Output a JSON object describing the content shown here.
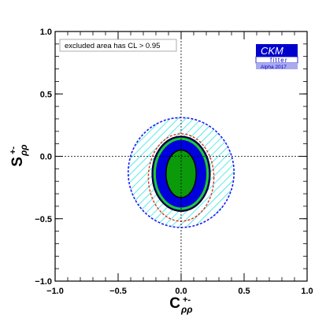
{
  "chart_data": {
    "type": "contour",
    "title": "",
    "xlabel": {
      "main": "C",
      "sub": "ρρ",
      "sup": "+-"
    },
    "ylabel": {
      "main": "S",
      "sub": "ρρ",
      "sup": "+-"
    },
    "xlim": [
      -1.0,
      1.0
    ],
    "ylim": [
      -1.0,
      1.0
    ],
    "xticks": [
      {
        "value": -1.0,
        "label": "−1.0"
      },
      {
        "value": -0.5,
        "label": "−0.5"
      },
      {
        "value": 0.0,
        "label": "0.0"
      },
      {
        "value": 0.5,
        "label": "0.5"
      },
      {
        "value": 1.0,
        "label": "1.0"
      }
    ],
    "yticks": [
      {
        "value": -1.0,
        "label": "−1.0"
      },
      {
        "value": -0.5,
        "label": "−0.5"
      },
      {
        "value": 0.0,
        "label": "0.0"
      },
      {
        "value": 0.5,
        "label": "0.5"
      },
      {
        "value": 1.0,
        "label": "1.0"
      }
    ],
    "reference_lines": {
      "x": 0.0,
      "y": 0.0,
      "style": "dotted"
    },
    "regions": [
      {
        "name": "",
        "style": "hatched",
        "color": "#00e0e0",
        "border": "#1a1aff",
        "center": [
          0.0,
          -0.13
        ],
        "rx": 0.42,
        "ry": 0.44
      },
      {
        "name": "",
        "style": "dashed-outline",
        "color": "#e03020",
        "center": [
          0.0,
          -0.17
        ],
        "rx": 0.26,
        "ry": 0.35
      },
      {
        "name": "",
        "style": "filled",
        "color": "#0000dd",
        "border": "#000000",
        "center": [
          0.0,
          -0.14
        ],
        "rx": 0.23,
        "ry": 0.3
      },
      {
        "name": "",
        "style": "outline",
        "color": "#22cc22",
        "center": [
          0.0,
          -0.14
        ],
        "rx": 0.21,
        "ry": 0.28
      },
      {
        "name": "",
        "style": "filled",
        "color": "#0a9a0a",
        "border": "#000000",
        "center": [
          0.0,
          -0.14
        ],
        "rx": 0.12,
        "ry": 0.19
      }
    ],
    "annotation": "excluded area has CL > 0.95",
    "logo": {
      "line1": "CKM",
      "line2": "fitter",
      "line3": "Alpha 2017",
      "colors": {
        "main": "#0000cc",
        "sub": "#aaaaee"
      }
    },
    "grid": false
  }
}
